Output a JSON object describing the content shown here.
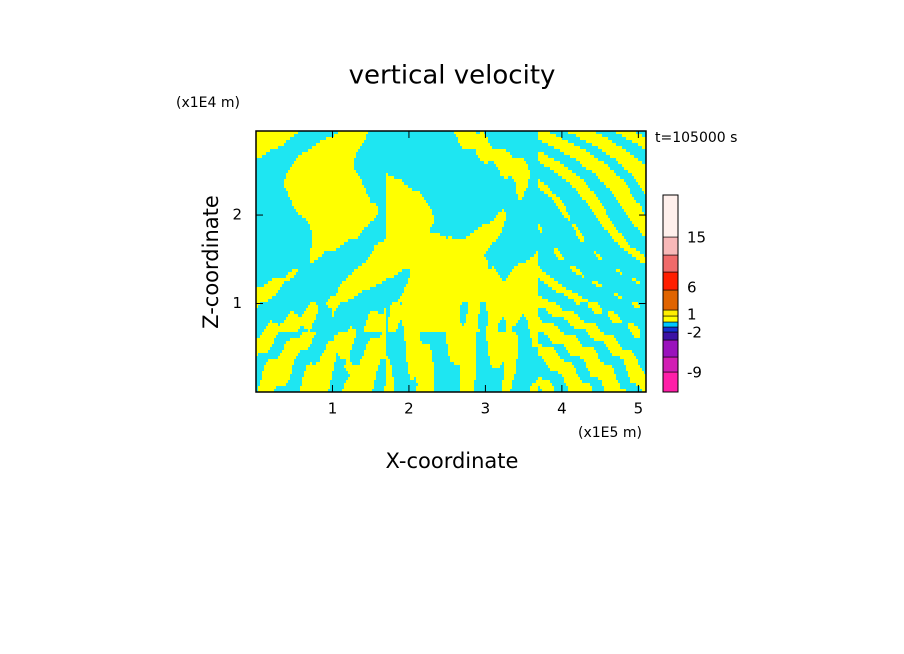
{
  "chart_data": {
    "type": "contour",
    "title": "vertical velocity",
    "x_label": "X-coordinate",
    "y_label": "Z-coordinate",
    "x_unit": "(x1E5 m)",
    "y_unit": "(x1E4 m)",
    "annotation": "t=105000 s",
    "xlim": [
      0,
      5.1
    ],
    "xticks": [
      1,
      2,
      3,
      4,
      5
    ],
    "ylim": [
      0,
      2.95
    ],
    "yticks": [
      1,
      2
    ],
    "field_colors": [
      "#1ee6f2",
      "#ffff00"
    ],
    "colorbar": {
      "colors": [
        "#ff1fa8",
        "#d21eb4",
        "#9a12bc",
        "#3c12a4",
        "#1432d2",
        "#00c8ff",
        "#ffff00",
        "#ffee00",
        "#e06400",
        "#ff1e00",
        "#f06a6a",
        "#f8b8b8",
        "#fff0ec"
      ],
      "ticks": [
        -9,
        -2,
        1,
        6,
        15
      ]
    }
  }
}
